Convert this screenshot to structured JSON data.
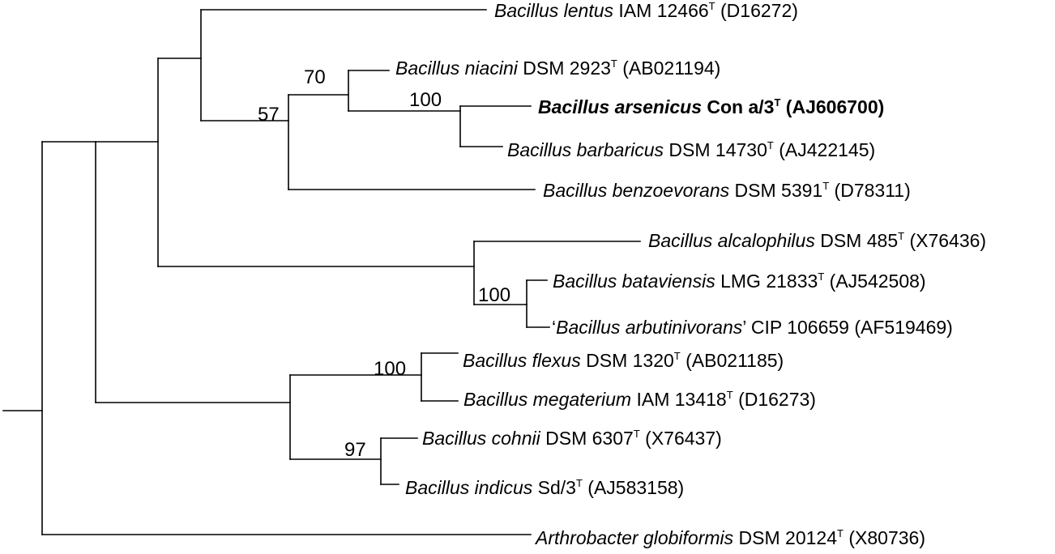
{
  "tree": {
    "taxa": [
      {
        "id": "lentus",
        "genus_species": "Bacillus lentus",
        "strain": " IAM 12466",
        "type_mark": "T",
        "accession": " (D16272)",
        "bold": false
      },
      {
        "id": "niacini",
        "genus_species": "Bacillus niacini",
        "strain": " DSM 2923",
        "type_mark": "T",
        "accession": " (AB021194)",
        "bold": false
      },
      {
        "id": "arsenicus",
        "genus_species": "Bacillus arsenicus",
        "strain": " Con a/3",
        "type_mark": "T",
        "accession": " (AJ606700)",
        "bold": true
      },
      {
        "id": "barbaricus",
        "genus_species": "Bacillus barbaricus",
        "strain": " DSM 14730",
        "type_mark": "T",
        "accession": " (AJ422145)",
        "bold": false
      },
      {
        "id": "benzoevorans",
        "genus_species": "Bacillus benzoevorans",
        "strain": " DSM 5391",
        "type_mark": "T",
        "accession": " (D78311)",
        "bold": false
      },
      {
        "id": "alcalophilus",
        "genus_species": "Bacillus alcalophilus",
        "strain": " DSM 485",
        "type_mark": "T",
        "accession": " (X76436)",
        "bold": false
      },
      {
        "id": "bataviensis",
        "genus_species": "Bacillus bataviensis",
        "strain": " LMG 21833",
        "type_mark": "T",
        "accession": " (AJ542508)",
        "bold": false
      },
      {
        "id": "arbutinivorans",
        "open_quote": "‘",
        "genus_species": "Bacillus arbutinivorans",
        "close_quote": "’",
        "strain": " CIP 106659 (AF519469)",
        "type_mark": "",
        "accession": "",
        "bold": false
      },
      {
        "id": "flexus",
        "genus_species": "Bacillus flexus",
        "strain": " DSM 1320",
        "type_mark": "T",
        "accession": " (AB021185)",
        "bold": false
      },
      {
        "id": "megaterium",
        "genus_species": "Bacillus megaterium",
        "strain": " IAM 13418",
        "type_mark": "T",
        "accession": " (D16273)",
        "bold": false
      },
      {
        "id": "cohnii",
        "genus_species": "Bacillus cohnii",
        "strain": " DSM 6307",
        "type_mark": "T",
        "accession": " (X76437)",
        "bold": false
      },
      {
        "id": "indicus",
        "genus_species": "Bacillus indicus",
        "strain": " Sd/3",
        "type_mark": "T",
        "accession": " (AJ583158)",
        "bold": false
      },
      {
        "id": "globiformis",
        "genus_species": "Arthrobacter globiformis",
        "strain": " DSM 20124",
        "type_mark": "T",
        "accession": " (X80736)",
        "bold": false
      }
    ],
    "bootstrap": [
      {
        "id": "boot-70",
        "value": "70"
      },
      {
        "id": "boot-57",
        "value": "57"
      },
      {
        "id": "boot-100-arsenicus",
        "value": "100"
      },
      {
        "id": "boot-100-bataviensis",
        "value": "100"
      },
      {
        "id": "boot-100-flexus",
        "value": "100"
      },
      {
        "id": "boot-97",
        "value": "97"
      }
    ]
  }
}
